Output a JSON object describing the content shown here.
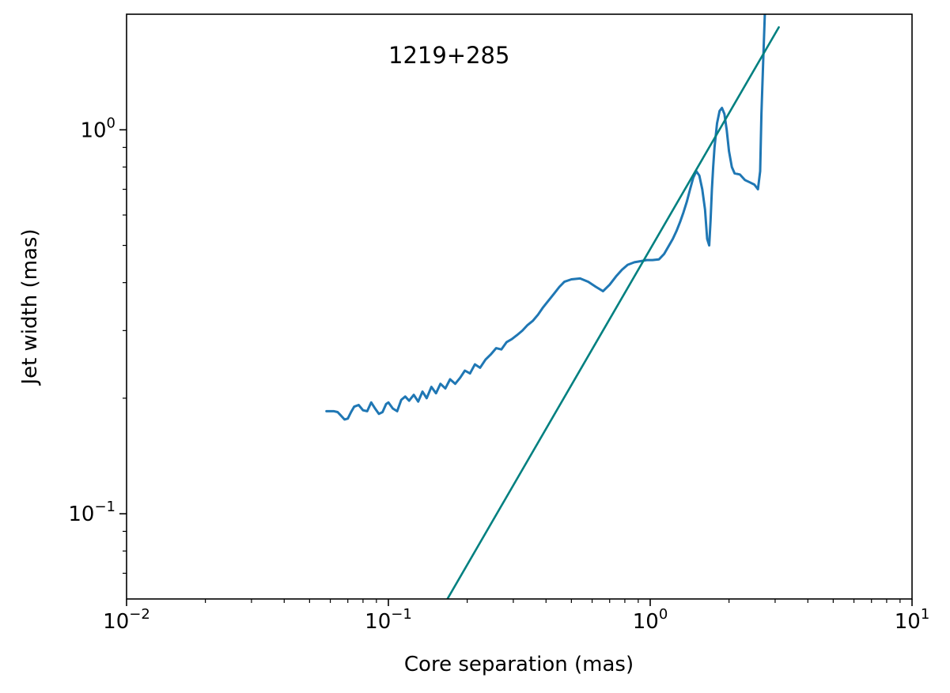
{
  "chart_data": {
    "type": "line",
    "xscale": "log",
    "yscale": "log",
    "xlim": [
      0.01,
      10
    ],
    "ylim": [
      0.06,
      2.0
    ],
    "xlabel": "Core separation (mas)",
    "ylabel": "Jet width (mas)",
    "annotation": "1219+285",
    "grid": false,
    "x_ticks": [
      {
        "base": "10",
        "exp": "−2"
      },
      {
        "base": "10",
        "exp": "−1"
      },
      {
        "base": "10",
        "exp": "0"
      },
      {
        "base": "10",
        "exp": "1"
      }
    ],
    "y_ticks": [
      {
        "base": "10",
        "exp": "−1"
      },
      {
        "base": "10",
        "exp": "0"
      }
    ],
    "colors": {
      "measured": "#1f77b4",
      "fit": "#008080"
    },
    "series": [
      {
        "x": [
          0.058,
          0.062,
          0.064,
          0.066,
          0.068,
          0.07,
          0.072,
          0.074,
          0.077,
          0.08,
          0.083,
          0.086,
          0.089,
          0.092,
          0.095,
          0.098,
          0.1,
          0.104,
          0.108,
          0.112,
          0.116,
          0.12,
          0.125,
          0.13,
          0.135,
          0.14,
          0.146,
          0.152,
          0.158,
          0.165,
          0.172,
          0.18,
          0.188,
          0.196,
          0.205,
          0.214,
          0.224,
          0.235,
          0.246,
          0.258,
          0.27,
          0.283,
          0.296,
          0.31,
          0.325,
          0.34,
          0.356,
          0.373,
          0.39,
          0.41,
          0.43,
          0.45,
          0.47,
          0.5,
          0.54,
          0.58,
          0.62,
          0.66,
          0.7,
          0.74,
          0.78,
          0.82,
          0.87,
          0.92,
          0.97,
          1.02,
          1.08,
          1.13,
          1.18,
          1.22,
          1.26,
          1.3,
          1.34,
          1.38,
          1.42,
          1.46,
          1.5,
          1.54,
          1.58,
          1.62,
          1.65,
          1.68,
          1.7,
          1.72,
          1.74,
          1.76,
          1.8,
          1.84,
          1.88,
          1.92,
          1.96,
          2.0,
          2.05,
          2.1,
          2.2,
          2.3,
          2.4,
          2.5,
          2.58,
          2.63,
          2.66,
          2.7,
          2.74,
          2.8
        ],
        "y": [
          0.185,
          0.185,
          0.184,
          0.18,
          0.176,
          0.177,
          0.184,
          0.19,
          0.192,
          0.186,
          0.185,
          0.195,
          0.188,
          0.182,
          0.184,
          0.193,
          0.195,
          0.188,
          0.185,
          0.198,
          0.202,
          0.197,
          0.204,
          0.196,
          0.208,
          0.2,
          0.214,
          0.206,
          0.218,
          0.212,
          0.224,
          0.218,
          0.226,
          0.236,
          0.232,
          0.245,
          0.24,
          0.252,
          0.26,
          0.27,
          0.268,
          0.28,
          0.285,
          0.292,
          0.3,
          0.31,
          0.318,
          0.33,
          0.345,
          0.36,
          0.375,
          0.39,
          0.402,
          0.408,
          0.41,
          0.402,
          0.39,
          0.38,
          0.395,
          0.415,
          0.432,
          0.445,
          0.452,
          0.455,
          0.458,
          0.458,
          0.46,
          0.475,
          0.5,
          0.52,
          0.545,
          0.575,
          0.61,
          0.65,
          0.7,
          0.75,
          0.78,
          0.76,
          0.7,
          0.62,
          0.52,
          0.5,
          0.58,
          0.7,
          0.8,
          0.9,
          1.04,
          1.12,
          1.14,
          1.1,
          1.0,
          0.88,
          0.8,
          0.77,
          0.765,
          0.74,
          0.73,
          0.72,
          0.7,
          0.78,
          1.1,
          1.5,
          2.0,
          2.3
        ]
      },
      {
        "x": [
          0.168,
          3.1
        ],
        "y": [
          0.06,
          1.85
        ]
      }
    ]
  }
}
